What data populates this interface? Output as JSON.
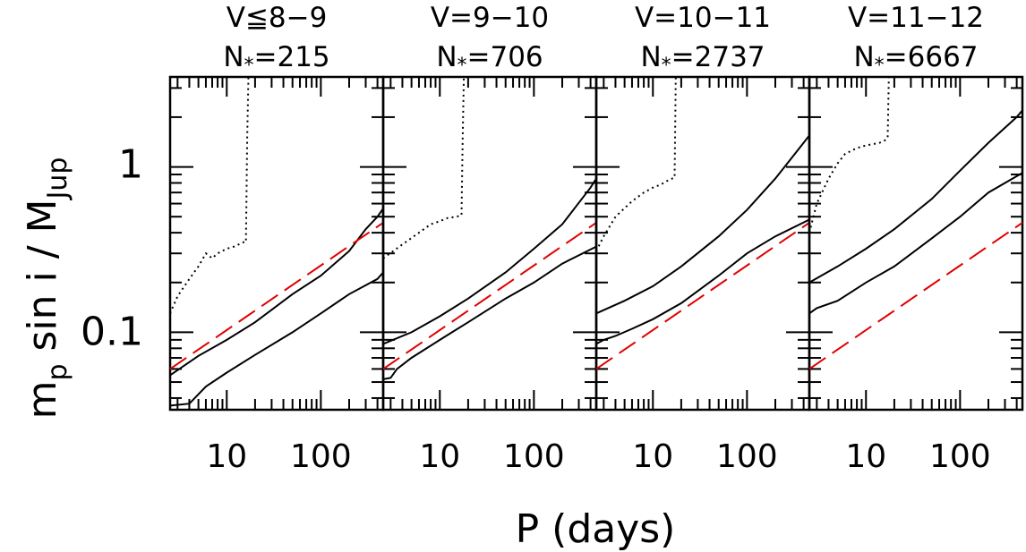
{
  "chart_data": {
    "type": "line",
    "xlabel": "P (days)",
    "ylabel": "m_p sin i / M_Jup",
    "ylabel_parts": {
      "base": "m",
      "sub": "p",
      "mid": " sin i / M",
      "sub2": "Jup"
    },
    "x_scale": "log",
    "y_scale": "log",
    "xlim": [
      2.5,
      460
    ],
    "ylim": [
      0.034,
      3.5
    ],
    "x_tick_labels": [
      "10",
      "100"
    ],
    "y_tick_labels": [
      "0.1",
      "1"
    ],
    "colors": {
      "axes": "#000000",
      "series": "#000000",
      "reference": "#e00000"
    },
    "panels": [
      {
        "title_line1": "V≦8−9",
        "title_line2_base": "N",
        "title_line2_sub": "*",
        "title_line2_rest": "=215",
        "series": [
          {
            "style": "dotted",
            "x": [
              2.5,
              3,
              4,
              5,
              6,
              7,
              8,
              10,
              12,
              15,
              16,
              16.5,
              17
            ],
            "y": [
              0.13,
              0.165,
              0.21,
              0.25,
              0.3,
              0.28,
              0.3,
              0.32,
              0.33,
              0.35,
              0.35,
              1.5,
              3.5
            ]
          },
          {
            "style": "solid",
            "x": [
              2.5,
              5,
              10,
              20,
              50,
              100,
              200,
              300,
              400,
              460
            ],
            "y": [
              0.055,
              0.072,
              0.09,
              0.115,
              0.17,
              0.22,
              0.31,
              0.42,
              0.5,
              0.56
            ]
          },
          {
            "style": "solid",
            "x": [
              2.5,
              4,
              6,
              10,
              20,
              50,
              100,
              200,
              400,
              460
            ],
            "y": [
              0.036,
              0.037,
              0.047,
              0.057,
              0.073,
              0.1,
              0.13,
              0.17,
              0.21,
              0.23
            ]
          },
          {
            "style": "dashed-red",
            "x": [
              2.5,
              460
            ],
            "y": [
              0.06,
              0.46
            ]
          }
        ]
      },
      {
        "title_line1": "V=9−10",
        "title_line2_base": "N",
        "title_line2_sub": "*",
        "title_line2_rest": "=706",
        "series": [
          {
            "style": "dotted",
            "x": [
              2.5,
              4,
              6,
              8,
              10,
              12,
              15,
              17,
              17.5,
              18
            ],
            "y": [
              0.28,
              0.34,
              0.4,
              0.45,
              0.47,
              0.49,
              0.5,
              0.51,
              1.5,
              3.5
            ]
          },
          {
            "style": "solid",
            "x": [
              2.5,
              5,
              10,
              20,
              50,
              100,
              200,
              400,
              460
            ],
            "y": [
              0.085,
              0.1,
              0.125,
              0.16,
              0.23,
              0.32,
              0.45,
              0.75,
              0.85
            ]
          },
          {
            "style": "solid",
            "x": [
              2.5,
              3,
              3.5,
              5,
              10,
              20,
              50,
              100,
              200,
              460
            ],
            "y": [
              0.052,
              0.053,
              0.06,
              0.07,
              0.09,
              0.115,
              0.16,
              0.2,
              0.26,
              0.33
            ]
          },
          {
            "style": "dashed-red",
            "x": [
              2.5,
              460
            ],
            "y": [
              0.06,
              0.46
            ]
          }
        ]
      },
      {
        "title_line1": "V=10−11",
        "title_line2_base": "N",
        "title_line2_sub": "*",
        "title_line2_rest": "=2737",
        "series": [
          {
            "style": "dotted",
            "x": [
              2.5,
              3,
              4,
              6,
              8,
              10,
              12,
              14,
              16,
              17,
              17.5
            ],
            "y": [
              0.31,
              0.38,
              0.5,
              0.62,
              0.7,
              0.75,
              0.78,
              0.82,
              0.85,
              0.86,
              3.5
            ]
          },
          {
            "style": "solid",
            "x": [
              2.5,
              5,
              10,
              20,
              50,
              100,
              200,
              400,
              460
            ],
            "y": [
              0.13,
              0.155,
              0.19,
              0.25,
              0.38,
              0.55,
              0.85,
              1.4,
              1.55
            ]
          },
          {
            "style": "solid",
            "x": [
              2.5,
              3,
              4,
              6,
              10,
              20,
              50,
              100,
              200,
              460
            ],
            "y": [
              0.085,
              0.09,
              0.095,
              0.105,
              0.12,
              0.15,
              0.22,
              0.3,
              0.38,
              0.48
            ]
          },
          {
            "style": "dashed-red",
            "x": [
              2.5,
              460
            ],
            "y": [
              0.06,
              0.46
            ]
          }
        ]
      },
      {
        "title_line1": "V=11−12",
        "title_line2_base": "N",
        "title_line2_sub": "*",
        "title_line2_rest": "=6667",
        "series": [
          {
            "style": "dotted",
            "x": [
              2.5,
              3,
              4,
              5,
              6,
              8,
              10,
              14,
              16,
              17,
              17.5
            ],
            "y": [
              0.4,
              0.6,
              0.85,
              1.05,
              1.2,
              1.3,
              1.35,
              1.4,
              1.45,
              1.5,
              3.5
            ]
          },
          {
            "style": "solid",
            "x": [
              2.5,
              5,
              10,
              20,
              50,
              100,
              200,
              400,
              460
            ],
            "y": [
              0.2,
              0.25,
              0.32,
              0.42,
              0.64,
              0.95,
              1.4,
              2.0,
              2.2
            ]
          },
          {
            "style": "solid",
            "x": [
              2.5,
              3,
              5,
              10,
              20,
              50,
              100,
              200,
              460
            ],
            "y": [
              0.13,
              0.14,
              0.155,
              0.2,
              0.25,
              0.37,
              0.5,
              0.7,
              0.92
            ]
          },
          {
            "style": "dashed-red",
            "x": [
              2.5,
              460
            ],
            "y": [
              0.06,
              0.46
            ]
          }
        ]
      }
    ]
  }
}
